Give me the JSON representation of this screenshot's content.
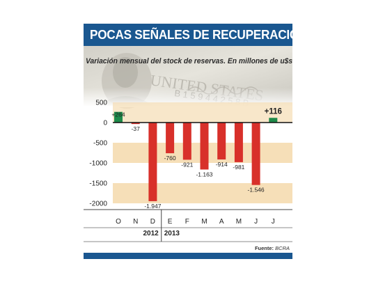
{
  "header": {
    "title": "POCAS SEÑALES DE RECUPERACIÓN"
  },
  "subtitle": "Variación mensual del stock de reservas. En millones de u$s",
  "source": {
    "label": "Fuente:",
    "value": "BCRA"
  },
  "colors": {
    "header_bg": "#1a5790",
    "positive": "#1e8a4a",
    "negative": "#d8302a",
    "band": "#f6dfb8",
    "background_photo": "banknote"
  },
  "chart_data": {
    "type": "bar",
    "title": "POCAS SEÑALES DE RECUPERACIÓN",
    "subtitle": "Variación mensual del stock de reservas. En millones de u$s",
    "categories": [
      "O",
      "N",
      "D",
      "E",
      "F",
      "M",
      "A",
      "M",
      "J",
      "J"
    ],
    "values": [
      264,
      -37,
      -1947,
      -760,
      -921,
      -1163,
      -914,
      -981,
      -1546,
      116
    ],
    "value_labels": [
      "+264",
      "-37",
      "-1.947",
      "-760",
      "-921",
      "-1.163",
      "-914",
      "-981",
      "-1.546",
      "+116"
    ],
    "years": [
      {
        "label": "2012",
        "from": 0,
        "to": 2
      },
      {
        "label": "2013",
        "from": 3,
        "to": 9
      }
    ],
    "yticks": [
      500,
      0,
      -500,
      -1000,
      -1500,
      -2000
    ],
    "ylim": [
      -2000,
      500
    ],
    "xlabel": "",
    "ylabel": "",
    "grid": false,
    "legend": "none"
  }
}
